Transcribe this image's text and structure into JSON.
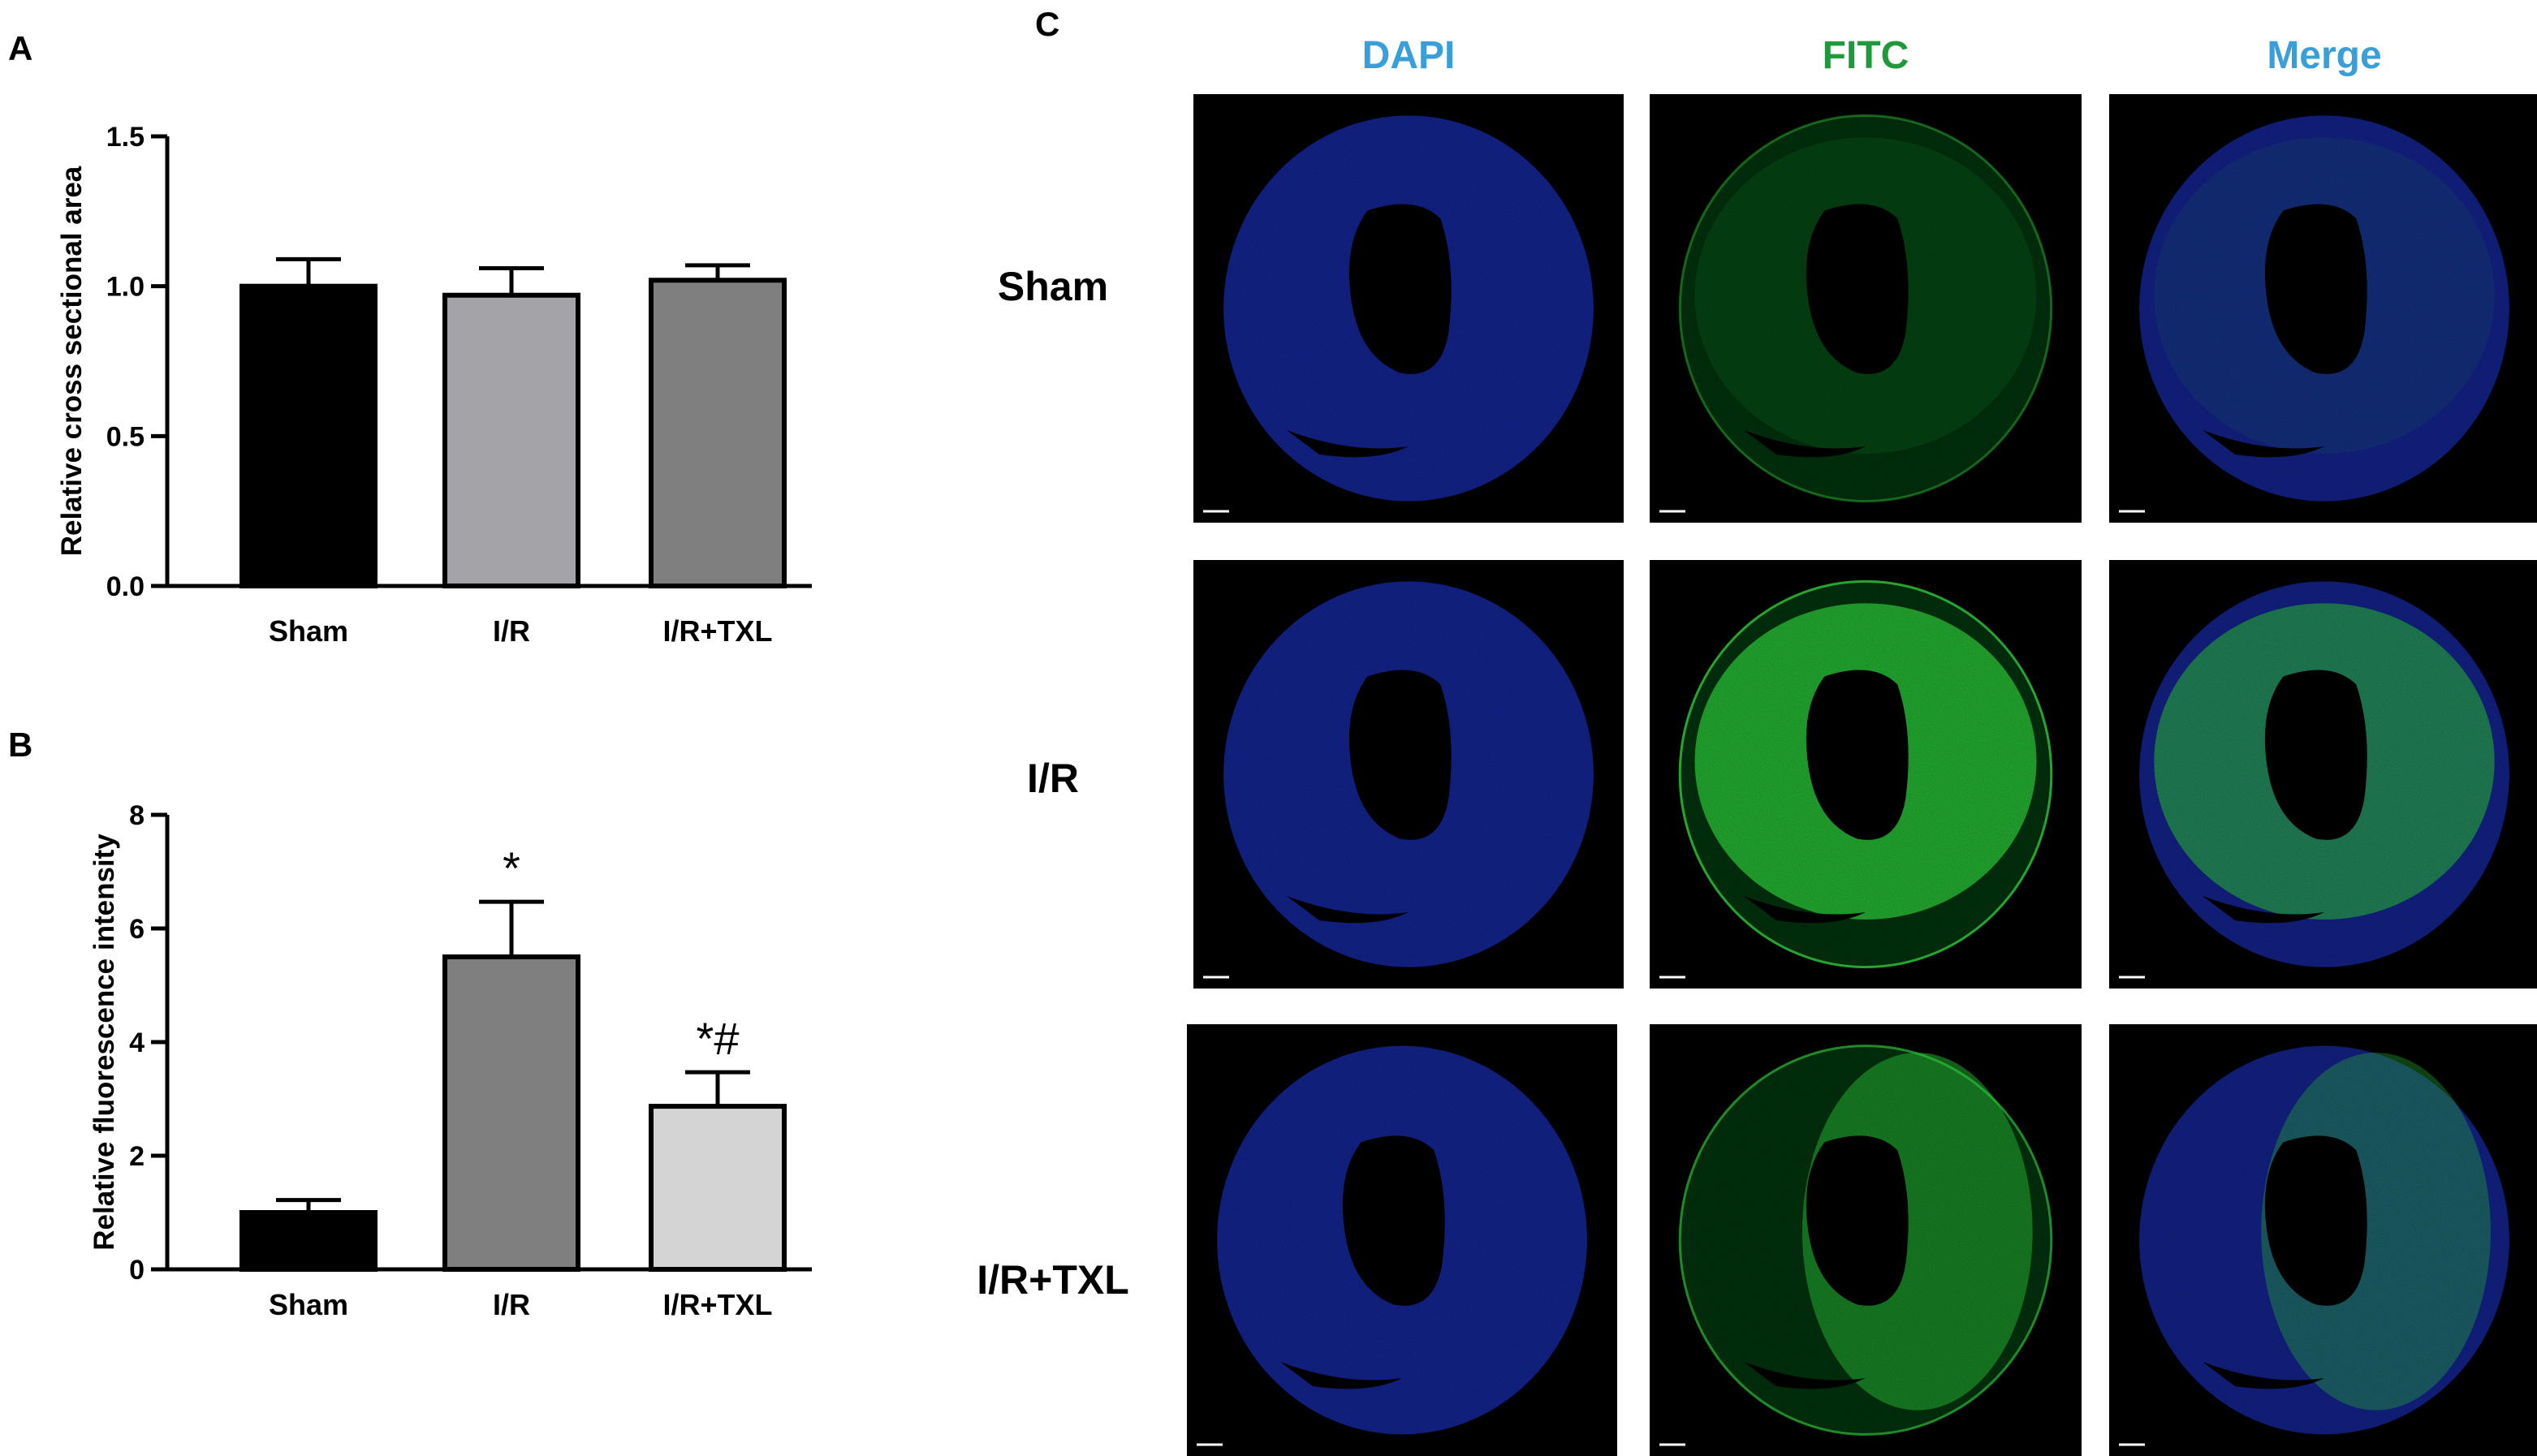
{
  "panels": {
    "a": "A",
    "b": "B",
    "c": "C"
  },
  "chart_data": [
    {
      "type": "bar",
      "panel": "A",
      "categories": [
        "Sham",
        "I/R",
        "I/R+TXL"
      ],
      "values": [
        1.0,
        0.97,
        1.02
      ],
      "errors": [
        0.09,
        0.09,
        0.05
      ],
      "fills": [
        "#000000",
        "#a3a3a8",
        "#7f7f7f"
      ],
      "annotations": [
        "",
        "",
        ""
      ],
      "ylabel": "Relative cross sectional area",
      "ylim": [
        0,
        1.5
      ],
      "yticks": [
        0.0,
        0.5,
        1.0,
        1.5
      ],
      "ytick_labels": [
        "0.0",
        "0.5",
        "1.0",
        "1.5"
      ]
    },
    {
      "type": "bar",
      "panel": "B",
      "categories": [
        "Sham",
        "I/R",
        "I/R+TXL"
      ],
      "values": [
        1.0,
        5.5,
        2.87
      ],
      "errors": [
        0.22,
        0.97,
        0.6
      ],
      "fills": [
        "#000000",
        "#7f7f7f",
        "#d4d4d4"
      ],
      "annotations": [
        "",
        "*",
        "*#"
      ],
      "ylabel": "Relative fluorescence intensity",
      "ylim": [
        0,
        8
      ],
      "yticks": [
        0,
        2,
        4,
        6,
        8
      ],
      "ytick_labels": [
        "0",
        "2",
        "4",
        "6",
        "8"
      ]
    }
  ],
  "micrographs": {
    "columns": [
      {
        "label": "DAPI",
        "color": "#3a9fd8"
      },
      {
        "label": "FITC",
        "color": "#1e9a3c"
      },
      {
        "label": "Merge",
        "color": "#3a9fd8"
      }
    ],
    "rows": [
      {
        "label": "Sham",
        "fitc_level": 0.12
      },
      {
        "label": "I/R",
        "fitc_level": 0.85
      },
      {
        "label": "I/R+TXL",
        "fitc_level": 0.55
      }
    ],
    "nucleus_color": "#1a2fa8",
    "fitc_color": "#2ec43a",
    "background": "#000000"
  }
}
